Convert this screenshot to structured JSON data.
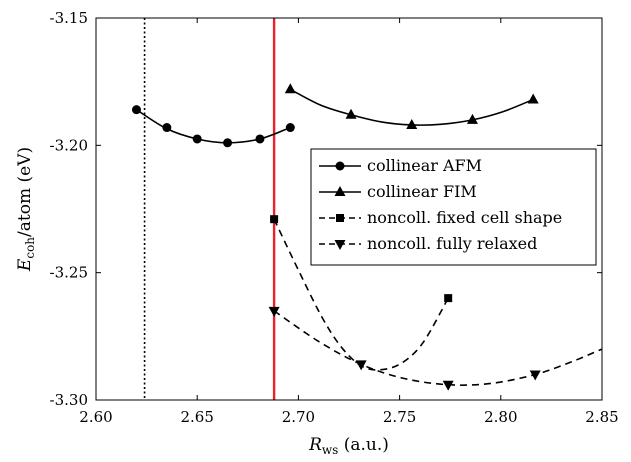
{
  "chart_data": {
    "type": "line",
    "xlabel": {
      "main": "R",
      "sub": "ws",
      "unit": "(a.u.)"
    },
    "ylabel": {
      "main": "E",
      "sub": "coh",
      "unit": "/atom (eV)"
    },
    "xlim": [
      2.6,
      2.85
    ],
    "ylim": [
      -3.3,
      -3.15
    ],
    "xticks": [
      2.6,
      2.65,
      2.7,
      2.75,
      2.8,
      2.85
    ],
    "xtick_labels": [
      "2.60",
      "2.65",
      "2.70",
      "2.75",
      "2.80",
      "2.85"
    ],
    "yticks": [
      -3.15,
      -3.2,
      -3.25,
      -3.3
    ],
    "ytick_labels": [
      "-3.15",
      "-3.20",
      "-3.25",
      "-3.30"
    ],
    "grid": false,
    "legend_position": "right",
    "vertical_lines": [
      {
        "x": 2.624,
        "style": "dotted",
        "color": "#000000"
      },
      {
        "x": 2.688,
        "style": "solid",
        "color": "#e8212b"
      }
    ],
    "series": [
      {
        "name": "collinear AFM",
        "marker": "circle",
        "line": "solid",
        "points": [
          [
            2.62,
            -3.186
          ],
          [
            2.635,
            -3.193
          ],
          [
            2.65,
            -3.1975
          ],
          [
            2.665,
            -3.199
          ],
          [
            2.681,
            -3.1975
          ],
          [
            2.696,
            -3.193
          ]
        ],
        "curve": [
          [
            2.62,
            -3.186
          ],
          [
            2.635,
            -3.1935
          ],
          [
            2.65,
            -3.1975
          ],
          [
            2.665,
            -3.199
          ],
          [
            2.681,
            -3.1975
          ],
          [
            2.696,
            -3.193
          ]
        ]
      },
      {
        "name": "collinear FIM",
        "marker": "triangle-up",
        "line": "solid",
        "points": [
          [
            2.696,
            -3.178
          ],
          [
            2.726,
            -3.188
          ],
          [
            2.756,
            -3.192
          ],
          [
            2.786,
            -3.19
          ],
          [
            2.816,
            -3.182
          ]
        ],
        "curve": [
          [
            2.696,
            -3.178
          ],
          [
            2.711,
            -3.1842
          ],
          [
            2.726,
            -3.188
          ],
          [
            2.741,
            -3.1908
          ],
          [
            2.756,
            -3.192
          ],
          [
            2.771,
            -3.1917
          ],
          [
            2.786,
            -3.19
          ],
          [
            2.801,
            -3.1868
          ],
          [
            2.816,
            -3.182
          ]
        ]
      },
      {
        "name": "noncoll. fixed cell shape",
        "marker": "square",
        "line": "dashed",
        "points": [
          [
            2.688,
            -3.229
          ],
          [
            2.774,
            -3.26
          ]
        ],
        "curve": [
          [
            2.688,
            -3.229
          ],
          [
            2.7,
            -3.249
          ],
          [
            2.712,
            -3.268
          ],
          [
            2.722,
            -3.28
          ],
          [
            2.732,
            -3.287
          ],
          [
            2.742,
            -3.288
          ],
          [
            2.752,
            -3.285
          ],
          [
            2.762,
            -3.277
          ],
          [
            2.774,
            -3.26
          ]
        ]
      },
      {
        "name": "noncoll. fully relaxed",
        "marker": "triangle-down",
        "line": "dashed",
        "points": [
          [
            2.688,
            -3.265
          ],
          [
            2.731,
            -3.286
          ],
          [
            2.774,
            -3.294
          ],
          [
            2.817,
            -3.29
          ]
        ],
        "curve": [
          [
            2.688,
            -3.265
          ],
          [
            2.71,
            -3.277
          ],
          [
            2.731,
            -3.286
          ],
          [
            2.752,
            -3.2915
          ],
          [
            2.774,
            -3.294
          ],
          [
            2.795,
            -3.2935
          ],
          [
            2.817,
            -3.29
          ],
          [
            2.835,
            -3.285
          ],
          [
            2.85,
            -3.28
          ]
        ]
      }
    ]
  }
}
